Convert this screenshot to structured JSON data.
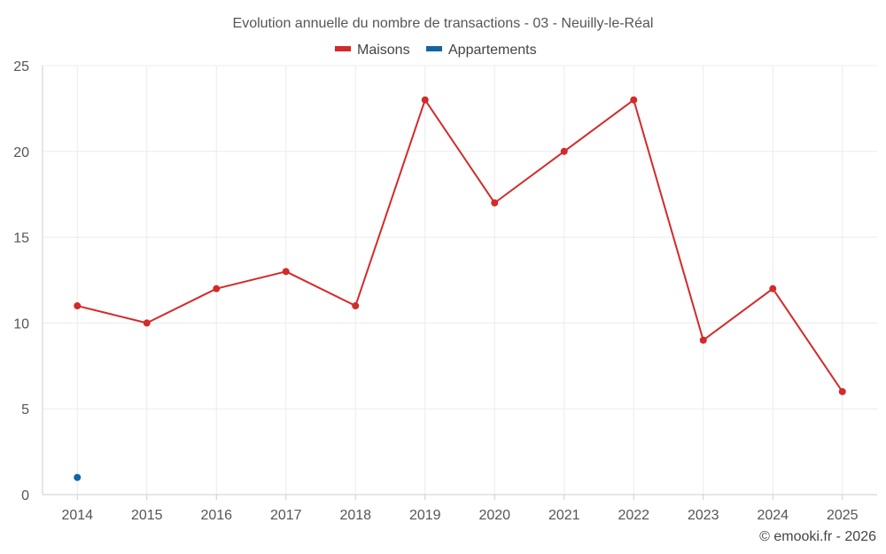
{
  "chart_data": {
    "type": "line",
    "title": "Evolution annuelle du nombre de transactions - 03 - Neuilly-le-Réal",
    "categories": [
      "2014",
      "2015",
      "2016",
      "2017",
      "2018",
      "2019",
      "2020",
      "2021",
      "2022",
      "2023",
      "2024",
      "2025"
    ],
    "series": [
      {
        "name": "Maisons",
        "color": "#d32a2a",
        "values": [
          11,
          10,
          12,
          13,
          11,
          23,
          17,
          20,
          23,
          9,
          12,
          6
        ]
      },
      {
        "name": "Appartements",
        "color": "#1464a5",
        "values": [
          1,
          null,
          null,
          null,
          null,
          null,
          null,
          null,
          null,
          null,
          null,
          null
        ]
      }
    ],
    "ylim": [
      0,
      25
    ],
    "yticks": [
      0,
      5,
      10,
      15,
      20,
      25
    ],
    "xlabel": "",
    "ylabel": "",
    "grid": true,
    "legend_position": "top-center"
  },
  "credit": "© emooki.fr - 2026"
}
